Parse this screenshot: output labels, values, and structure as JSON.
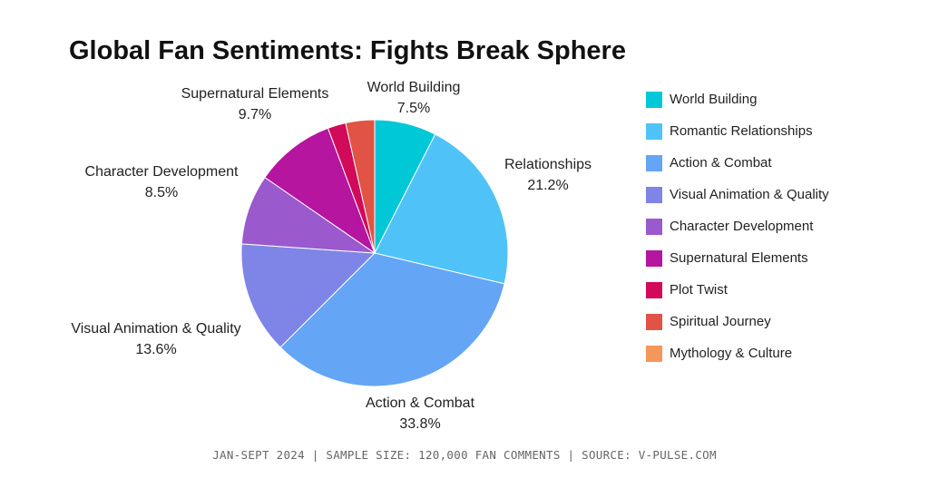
{
  "chart_data": {
    "type": "pie",
    "title": "Global Fan Sentiments: Fights Break Sphere",
    "slices": [
      {
        "label": "World Building",
        "display_label": "World Building",
        "value": 7.5,
        "value_label": "7.5%",
        "color": "#00c8d7"
      },
      {
        "label": "Romantic Relationships",
        "display_label": "Relationships",
        "value": 21.2,
        "value_label": "21.2%",
        "color": "#4fc3f7"
      },
      {
        "label": "Action & Combat",
        "display_label": "Action & Combat",
        "value": 33.8,
        "value_label": "33.8%",
        "color": "#64a5f6"
      },
      {
        "label": "Visual Animation & Quality",
        "display_label": "Visual Animation & Quality",
        "value": 13.6,
        "value_label": "13.6%",
        "color": "#7f85e6"
      },
      {
        "label": "Character Development",
        "display_label": "Character Development",
        "value": 8.5,
        "value_label": "8.5%",
        "color": "#9a59cd"
      },
      {
        "label": "Supernatural Elements",
        "display_label": "Supernatural Elements",
        "value": 9.7,
        "value_label": "9.7%",
        "color": "#b5159f"
      },
      {
        "label": "Plot Twist",
        "display_label": "",
        "value": 2.2,
        "value_label": "",
        "color": "#d10a5a"
      },
      {
        "label": "Spiritual Journey",
        "display_label": "",
        "value": 3.5,
        "value_label": "",
        "color": "#e15345"
      },
      {
        "label": "Mythology & Culture",
        "display_label": "",
        "value": 0,
        "value_label": "",
        "color": "#f5975b"
      }
    ],
    "legend_position": "right"
  },
  "footer": "JAN-SEPT 2024 | SAMPLE SIZE: 120,000 FAN COMMENTS | SOURCE: V-PULSE.COM"
}
